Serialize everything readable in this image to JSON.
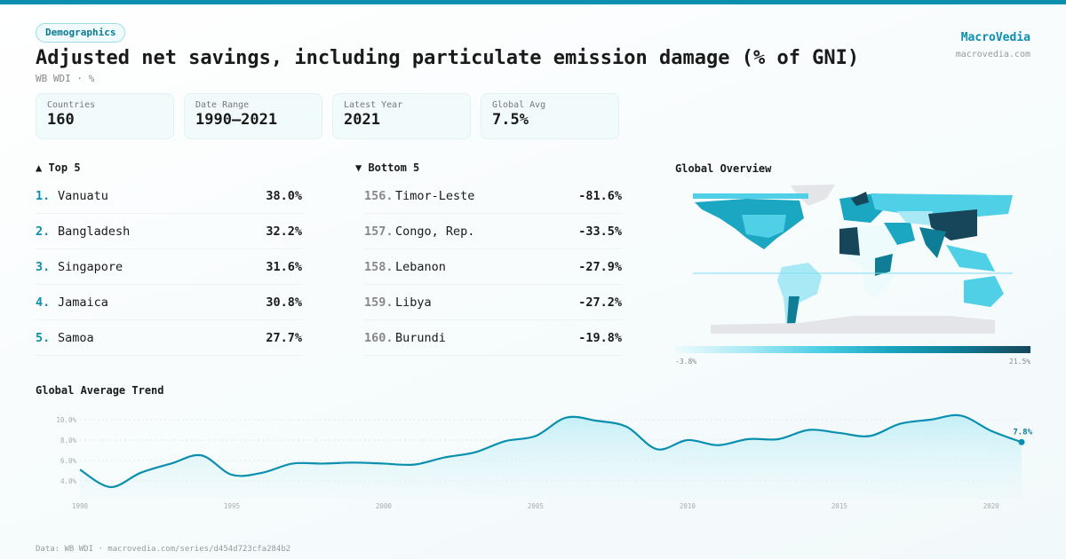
{
  "header": {
    "badge": "Demographics",
    "title": "Adjusted net savings, including particulate emission damage (% of GNI)",
    "subtitle": "WB WDI · %",
    "brand": "MacroVedia",
    "brand_url": "macrovedia.com"
  },
  "stats": [
    {
      "label": "Countries",
      "value": "160"
    },
    {
      "label": "Date Range",
      "value": "1990–2021"
    },
    {
      "label": "Latest Year",
      "value": "2021"
    },
    {
      "label": "Global Avg",
      "value": "7.5%"
    }
  ],
  "top5": {
    "title": "▲ Top 5",
    "items": [
      {
        "rank": "1.",
        "name": "Vanuatu",
        "value": "38.0%"
      },
      {
        "rank": "2.",
        "name": "Bangladesh",
        "value": "32.2%"
      },
      {
        "rank": "3.",
        "name": "Singapore",
        "value": "31.6%"
      },
      {
        "rank": "4.",
        "name": "Jamaica",
        "value": "30.8%"
      },
      {
        "rank": "5.",
        "name": "Samoa",
        "value": "27.7%"
      }
    ]
  },
  "bottom5": {
    "title": "▼ Bottom 5",
    "items": [
      {
        "rank": "156.",
        "name": "Timor-Leste",
        "value": "-81.6%"
      },
      {
        "rank": "157.",
        "name": "Congo, Rep.",
        "value": "-33.5%"
      },
      {
        "rank": "158.",
        "name": "Lebanon",
        "value": "-27.9%"
      },
      {
        "rank": "159.",
        "name": "Libya",
        "value": "-27.2%"
      },
      {
        "rank": "160.",
        "name": "Burundi",
        "value": "-19.8%"
      }
    ]
  },
  "map": {
    "title": "Global Overview",
    "legend_min": "-3.8%",
    "legend_max": "21.5%",
    "colors": [
      "#eefbfd",
      "#a9e9f5",
      "#4fd0e6",
      "#1ba6c2",
      "#0f7d96",
      "#17465a"
    ],
    "no_data": "#e3e5e8"
  },
  "footer": "Data: WB WDI · macrovedia.com/series/d454d723cfa284b2",
  "chart_data": {
    "type": "area",
    "title": "Global Average Trend",
    "xlabel": "",
    "ylabel": "",
    "x": [
      1990,
      1991,
      1992,
      1993,
      1994,
      1995,
      1996,
      1997,
      1998,
      1999,
      2000,
      2001,
      2002,
      2003,
      2004,
      2005,
      2006,
      2007,
      2008,
      2009,
      2010,
      2011,
      2012,
      2013,
      2014,
      2015,
      2016,
      2017,
      2018,
      2019,
      2020,
      2021
    ],
    "values": [
      5.1,
      3.4,
      4.8,
      5.7,
      6.5,
      4.6,
      4.8,
      5.7,
      5.7,
      5.8,
      5.7,
      5.6,
      6.3,
      6.8,
      7.9,
      8.4,
      10.2,
      9.9,
      9.3,
      7.1,
      8.0,
      7.5,
      8.1,
      8.1,
      9.0,
      8.7,
      8.4,
      9.6,
      10.0,
      10.4,
      8.9,
      7.8
    ],
    "yticks": [
      "4.0%",
      "6.0%",
      "8.0%",
      "10.0%"
    ],
    "ytick_values": [
      4,
      6,
      8,
      10
    ],
    "xticks": [
      "1990",
      "1995",
      "2000",
      "2005",
      "2010",
      "2015",
      "2020"
    ],
    "xtick_values": [
      1990,
      1995,
      2000,
      2005,
      2010,
      2015,
      2020
    ],
    "ylim": [
      2.5,
      11
    ],
    "end_label": "7.8%",
    "color": "#0a8fae",
    "grid": true
  }
}
